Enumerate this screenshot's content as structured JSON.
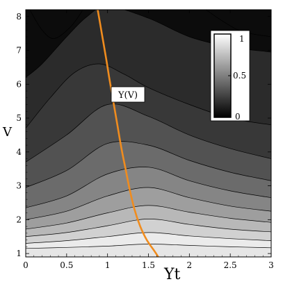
{
  "chart_data": {
    "type": "contour",
    "xlabel": "Υt",
    "ylabel": "V",
    "xlim": [
      0,
      3
    ],
    "ylim": [
      0.9,
      8.2
    ],
    "x_ticks": [
      "0",
      "0.5",
      "1",
      "1.5",
      "2",
      "2.5",
      "3"
    ],
    "y_ticks": [
      "1",
      "2",
      "3",
      "4",
      "5",
      "6",
      "7",
      "8"
    ],
    "colorbar": {
      "min": 0,
      "max": 1,
      "ticks": [
        "0",
        "0.5",
        "1"
      ],
      "gradient": [
        "#000000",
        "#ffffff"
      ],
      "placement": "top-right"
    },
    "contour_levels": [
      0.1,
      0.2,
      0.3,
      0.4,
      0.5,
      0.6,
      0.7,
      0.8,
      0.9
    ],
    "contours": [
      {
        "level": 0.9,
        "points": [
          [
            0,
            1.15
          ],
          [
            0.5,
            1.18
          ],
          [
            1,
            1.22
          ],
          [
            1.5,
            1.28
          ],
          [
            2,
            1.24
          ],
          [
            2.5,
            1.2
          ],
          [
            3,
            1.17
          ]
        ]
      },
      {
        "level": 0.8,
        "points": [
          [
            0,
            1.3
          ],
          [
            0.5,
            1.38
          ],
          [
            1,
            1.5
          ],
          [
            1.5,
            1.62
          ],
          [
            2,
            1.52
          ],
          [
            2.5,
            1.44
          ],
          [
            3,
            1.38
          ]
        ]
      },
      {
        "level": 0.7,
        "points": [
          [
            0,
            1.5
          ],
          [
            0.5,
            1.62
          ],
          [
            1,
            1.82
          ],
          [
            1.5,
            2.02
          ],
          [
            2,
            1.86
          ],
          [
            2.5,
            1.72
          ],
          [
            3,
            1.64
          ]
        ]
      },
      {
        "level": 0.6,
        "points": [
          [
            0,
            1.72
          ],
          [
            0.5,
            1.9
          ],
          [
            1,
            2.2
          ],
          [
            1.5,
            2.42
          ],
          [
            2,
            2.22
          ],
          [
            2.5,
            2.04
          ],
          [
            3,
            1.92
          ]
        ]
      },
      {
        "level": 0.5,
        "points": [
          [
            0,
            2
          ],
          [
            0.5,
            2.25
          ],
          [
            1,
            2.7
          ],
          [
            1.5,
            2.95
          ],
          [
            2,
            2.65
          ],
          [
            2.5,
            2.4
          ],
          [
            3,
            2.25
          ]
        ]
      },
      {
        "level": 0.4,
        "points": [
          [
            0,
            2.35
          ],
          [
            0.5,
            2.7
          ],
          [
            1,
            3.35
          ],
          [
            1.5,
            3.55
          ],
          [
            2,
            3.15
          ],
          [
            2.5,
            2.85
          ],
          [
            3,
            2.65
          ]
        ]
      },
      {
        "level": 0.3,
        "points": [
          [
            0,
            2.95
          ],
          [
            0.5,
            3.45
          ],
          [
            1,
            4.25
          ],
          [
            1.5,
            4.2
          ],
          [
            2,
            3.75
          ],
          [
            2.5,
            3.4
          ],
          [
            3,
            3.15
          ]
        ]
      },
      {
        "level": 0.2,
        "points": [
          [
            0,
            3.7
          ],
          [
            0.5,
            4.5
          ],
          [
            1,
            5.4
          ],
          [
            1.5,
            5.05
          ],
          [
            2,
            4.5
          ],
          [
            2.5,
            4.1
          ],
          [
            3,
            3.8
          ]
        ]
      },
      {
        "level": 0.1,
        "points": [
          [
            0,
            4.7
          ],
          [
            0.3,
            5.6
          ],
          [
            0.6,
            6.35
          ],
          [
            0.9,
            6.6
          ],
          [
            1.2,
            6.3
          ],
          [
            1.5,
            5.9
          ],
          [
            2,
            5.4
          ],
          [
            2.5,
            5
          ],
          [
            3,
            4.8
          ]
        ]
      },
      {
        "level": 0.05,
        "points": [
          [
            0,
            6.2
          ],
          [
            0.2,
            6.6
          ],
          [
            0.5,
            7.4
          ],
          [
            0.75,
            8
          ],
          [
            1.0,
            8.3
          ],
          [
            1.5,
            7.95
          ],
          [
            2,
            7.4
          ],
          [
            2.5,
            7.1
          ],
          [
            3,
            6.95
          ]
        ]
      },
      {
        "level": 0.02,
        "points": [
          [
            0.05,
            8.2
          ],
          [
            0.2,
            7.6
          ],
          [
            0.35,
            7.35
          ],
          [
            0.55,
            7.7
          ],
          [
            0.7,
            8.2
          ]
        ]
      },
      {
        "level": 0.01,
        "points": [
          [
            2.2,
            8.2
          ],
          [
            2.6,
            7.6
          ],
          [
            3,
            7.4
          ]
        ]
      }
    ],
    "curve": {
      "label": "Υ(V)",
      "color": "#f08c1e",
      "points": [
        [
          0.88,
          8.2
        ],
        [
          0.93,
          7.5
        ],
        [
          0.98,
          6.8
        ],
        [
          1.02,
          6.2
        ],
        [
          1.07,
          5.5
        ],
        [
          1.12,
          4.8
        ],
        [
          1.17,
          4.1
        ],
        [
          1.22,
          3.5
        ],
        [
          1.27,
          2.9
        ],
        [
          1.33,
          2.3
        ],
        [
          1.4,
          1.8
        ],
        [
          1.48,
          1.4
        ],
        [
          1.58,
          1.05
        ],
        [
          1.62,
          0.9
        ]
      ]
    }
  }
}
